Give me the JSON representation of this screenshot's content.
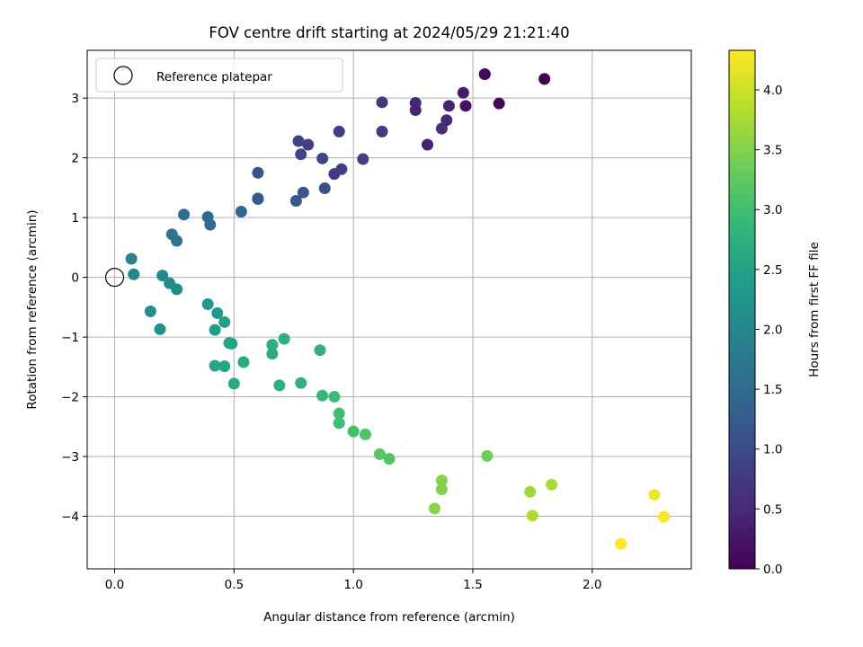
{
  "chart_data": {
    "type": "scatter",
    "title": "FOV centre drift starting at 2024/05/29 21:21:40",
    "xlabel": "Angular distance from reference (arcmin)",
    "ylabel": "Rotation from reference (arcmin)",
    "xlim": [
      -0.115,
      2.415
    ],
    "ylim": [
      -4.88,
      3.8
    ],
    "xticks": [
      0.0,
      0.5,
      1.0,
      1.5,
      2.0
    ],
    "xtick_labels": [
      "0.0",
      "0.5",
      "1.0",
      "1.5",
      "2.0"
    ],
    "yticks": [
      -4,
      -3,
      -2,
      -1,
      0,
      1,
      2,
      3
    ],
    "ytick_labels": [
      "−4",
      "−3",
      "−2",
      "−1",
      "0",
      "1",
      "2",
      "3"
    ],
    "grid": true,
    "legend": {
      "placement": "upper-left",
      "entries": [
        "Reference platepar"
      ]
    },
    "reference_point": {
      "x": 0.0,
      "y": 0.0
    },
    "colorbar": {
      "label": "Hours from first FF file",
      "colormap": "viridis",
      "range": [
        0.0,
        4.33
      ],
      "ticks": [
        0.0,
        0.5,
        1.0,
        1.5,
        2.0,
        2.5,
        3.0,
        3.5,
        4.0
      ],
      "tick_labels": [
        "0.0",
        "0.5",
        "1.0",
        "1.5",
        "2.0",
        "2.5",
        "3.0",
        "3.5",
        "4.0"
      ],
      "colors": [
        "#440154",
        "#482878",
        "#3e4989",
        "#31688e",
        "#26828e",
        "#1f9e89",
        "#35b779",
        "#6ece58",
        "#b5de2b",
        "#fde725"
      ]
    },
    "points": [
      {
        "x": 1.55,
        "y": 3.4,
        "c": 0.05
      },
      {
        "x": 1.55,
        "y": 3.4,
        "c": 0.1
      },
      {
        "x": 1.8,
        "y": 3.32,
        "c": 0.0
      },
      {
        "x": 1.61,
        "y": 2.91,
        "c": 0.1
      },
      {
        "x": 1.46,
        "y": 3.09,
        "c": 0.3
      },
      {
        "x": 1.47,
        "y": 2.87,
        "c": 0.2
      },
      {
        "x": 1.4,
        "y": 2.87,
        "c": 0.4
      },
      {
        "x": 1.26,
        "y": 2.92,
        "c": 0.5
      },
      {
        "x": 1.26,
        "y": 2.8,
        "c": 0.45
      },
      {
        "x": 1.12,
        "y": 2.93,
        "c": 0.7
      },
      {
        "x": 1.39,
        "y": 2.63,
        "c": 0.5
      },
      {
        "x": 1.37,
        "y": 2.49,
        "c": 0.55
      },
      {
        "x": 1.31,
        "y": 2.22,
        "c": 0.4
      },
      {
        "x": 1.12,
        "y": 2.44,
        "c": 0.75
      },
      {
        "x": 0.94,
        "y": 2.44,
        "c": 0.8
      },
      {
        "x": 0.77,
        "y": 2.28,
        "c": 0.85
      },
      {
        "x": 0.81,
        "y": 2.22,
        "c": 0.8
      },
      {
        "x": 0.78,
        "y": 2.06,
        "c": 0.9
      },
      {
        "x": 0.87,
        "y": 1.99,
        "c": 0.9
      },
      {
        "x": 1.04,
        "y": 1.98,
        "c": 0.85
      },
      {
        "x": 0.95,
        "y": 1.81,
        "c": 0.8
      },
      {
        "x": 0.92,
        "y": 1.73,
        "c": 0.75
      },
      {
        "x": 0.6,
        "y": 1.75,
        "c": 1.1
      },
      {
        "x": 0.88,
        "y": 1.49,
        "c": 1.05
      },
      {
        "x": 0.79,
        "y": 1.42,
        "c": 1.15
      },
      {
        "x": 0.6,
        "y": 1.32,
        "c": 1.25
      },
      {
        "x": 0.6,
        "y": 1.31,
        "c": 1.25
      },
      {
        "x": 0.76,
        "y": 1.28,
        "c": 1.2
      },
      {
        "x": 0.53,
        "y": 1.1,
        "c": 1.4
      },
      {
        "x": 0.29,
        "y": 1.05,
        "c": 1.55
      },
      {
        "x": 0.39,
        "y": 1.01,
        "c": 1.5
      },
      {
        "x": 0.4,
        "y": 0.88,
        "c": 1.5
      },
      {
        "x": 0.24,
        "y": 0.72,
        "c": 1.7
      },
      {
        "x": 0.26,
        "y": 0.61,
        "c": 1.65
      },
      {
        "x": 0.07,
        "y": 0.31,
        "c": 1.9
      },
      {
        "x": 0.08,
        "y": 0.05,
        "c": 2.0
      },
      {
        "x": 0.2,
        "y": 0.03,
        "c": 2.05
      },
      {
        "x": 0.23,
        "y": -0.1,
        "c": 2.1
      },
      {
        "x": 0.26,
        "y": -0.2,
        "c": 2.1
      },
      {
        "x": 0.15,
        "y": -0.57,
        "c": 2.15
      },
      {
        "x": 0.19,
        "y": -0.87,
        "c": 2.2
      },
      {
        "x": 0.39,
        "y": -0.45,
        "c": 2.3
      },
      {
        "x": 0.43,
        "y": -0.6,
        "c": 2.35
      },
      {
        "x": 0.46,
        "y": -0.75,
        "c": 2.4
      },
      {
        "x": 0.42,
        "y": -0.88,
        "c": 2.4
      },
      {
        "x": 0.48,
        "y": -1.1,
        "c": 2.5
      },
      {
        "x": 0.49,
        "y": -1.11,
        "c": 2.5
      },
      {
        "x": 0.42,
        "y": -1.48,
        "c": 2.55
      },
      {
        "x": 0.46,
        "y": -1.49,
        "c": 2.55
      },
      {
        "x": 0.54,
        "y": -1.42,
        "c": 2.6
      },
      {
        "x": 0.5,
        "y": -1.78,
        "c": 2.6
      },
      {
        "x": 0.66,
        "y": -1.13,
        "c": 2.7
      },
      {
        "x": 0.66,
        "y": -1.28,
        "c": 2.7
      },
      {
        "x": 0.71,
        "y": -1.03,
        "c": 2.75
      },
      {
        "x": 0.69,
        "y": -1.81,
        "c": 2.75
      },
      {
        "x": 0.78,
        "y": -1.77,
        "c": 2.8
      },
      {
        "x": 0.86,
        "y": -1.22,
        "c": 2.8
      },
      {
        "x": 0.87,
        "y": -1.98,
        "c": 2.9
      },
      {
        "x": 0.92,
        "y": -2.0,
        "c": 2.95
      },
      {
        "x": 0.94,
        "y": -2.28,
        "c": 3.0
      },
      {
        "x": 0.94,
        "y": -2.44,
        "c": 3.0
      },
      {
        "x": 1.0,
        "y": -2.58,
        "c": 3.05
      },
      {
        "x": 1.05,
        "y": -2.63,
        "c": 3.1
      },
      {
        "x": 1.11,
        "y": -2.96,
        "c": 3.2
      },
      {
        "x": 1.15,
        "y": -3.04,
        "c": 3.15
      },
      {
        "x": 1.56,
        "y": -2.99,
        "c": 3.35
      },
      {
        "x": 1.37,
        "y": -3.4,
        "c": 3.5
      },
      {
        "x": 1.37,
        "y": -3.55,
        "c": 3.5
      },
      {
        "x": 1.34,
        "y": -3.87,
        "c": 3.55
      },
      {
        "x": 1.74,
        "y": -3.59,
        "c": 3.7
      },
      {
        "x": 1.83,
        "y": -3.47,
        "c": 3.75
      },
      {
        "x": 1.75,
        "y": -3.99,
        "c": 3.8
      },
      {
        "x": 2.26,
        "y": -3.64,
        "c": 4.25
      },
      {
        "x": 2.3,
        "y": -4.01,
        "c": 4.3
      },
      {
        "x": 2.12,
        "y": -4.46,
        "c": 4.3
      }
    ]
  }
}
